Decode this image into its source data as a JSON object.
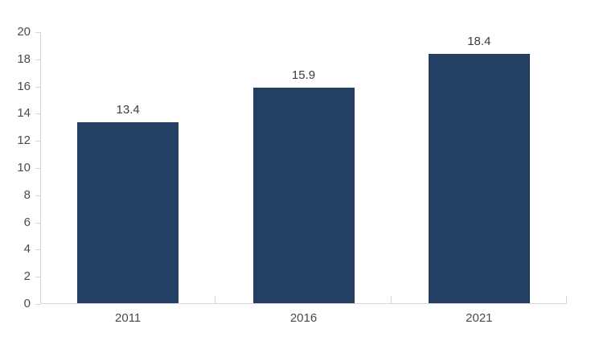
{
  "chart_data": {
    "type": "bar",
    "title": "",
    "xlabel": "",
    "ylabel": "",
    "categories": [
      "2011",
      "2016",
      "2021"
    ],
    "values": [
      13.4,
      15.9,
      18.4
    ],
    "data_labels": [
      "13.4",
      "15.9",
      "18.4"
    ],
    "ylim": [
      0,
      20
    ],
    "ytick_step": 2,
    "yticks": [
      0,
      2,
      4,
      6,
      8,
      10,
      12,
      14,
      16,
      18,
      20
    ],
    "grid": false,
    "legend_position": "none",
    "colors": {
      "bar": "#233F63",
      "axis": "#D6D6D6",
      "axis_label": "#4A4A4A",
      "data_label": "#3D3D3D",
      "background": "#FFFFFF"
    }
  }
}
